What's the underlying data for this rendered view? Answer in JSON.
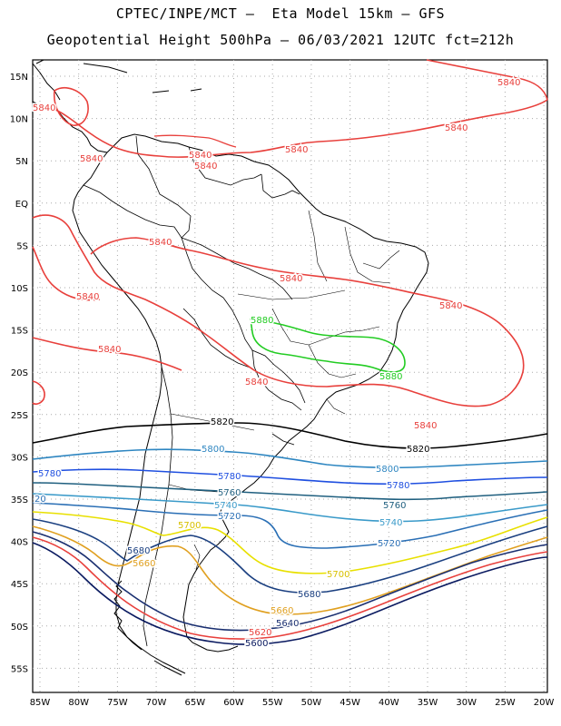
{
  "title_line1": "CPTEC/INPE/MCT –  Eta Model 15km – GFS",
  "title_line2": "Geopotential Height 500hPa – 06/03/2021 12UTC fct=212h",
  "lat_labels": [
    "15N",
    "10N",
    "5N",
    "EQ",
    "5S",
    "10S",
    "15S",
    "20S",
    "25S",
    "30S",
    "35S",
    "40S",
    "45S",
    "50S",
    "55S"
  ],
  "lon_labels": [
    "85W",
    "80W",
    "75W",
    "70W",
    "65W",
    "60W",
    "55W",
    "50W",
    "45W",
    "40W",
    "35W",
    "30W",
    "25W",
    "20W"
  ],
  "contours": [
    {
      "level": "5840",
      "color": "#e8403c",
      "region": "north"
    },
    {
      "level": "5880",
      "color": "#22cc22",
      "region": "central Brazil"
    },
    {
      "level": "5820",
      "color": "#000000",
      "region": "south"
    },
    {
      "level": "5800",
      "color": "#2e86c1",
      "region": "south"
    },
    {
      "level": "5780",
      "color": "#1f4fe0",
      "region": "south"
    },
    {
      "level": "5760",
      "color": "#1f5f7f",
      "region": "south"
    },
    {
      "level": "5740",
      "color": "#3a9ac9",
      "region": "south"
    },
    {
      "level": "5720",
      "color": "#2a6fb5",
      "region": "south"
    },
    {
      "level": "5700",
      "color": "#e8e000",
      "region": "south"
    },
    {
      "level": "5680",
      "color": "#1a3f80",
      "region": "south"
    },
    {
      "level": "5660",
      "color": "#e0a020",
      "region": "south"
    },
    {
      "level": "5640",
      "color": "#1a2f70",
      "region": "south"
    },
    {
      "level": "5620",
      "color": "#e8403c",
      "region": "south"
    },
    {
      "level": "5600",
      "color": "#0a1a60",
      "region": "south"
    }
  ],
  "contour_labels": {
    "c5840": [
      "5840",
      "5840",
      "5840",
      "5840",
      "5840",
      "5840",
      "5840",
      "5840",
      "5840",
      "5840",
      "5840",
      "5840",
      "5840",
      "5840"
    ],
    "c5880": [
      "5880",
      "5880"
    ],
    "c5820": [
      "5820",
      "5820"
    ],
    "c5800": [
      "5800",
      "5800"
    ],
    "c5780": [
      "5780",
      "5780",
      "5780"
    ],
    "c5760": [
      "5760",
      "5760"
    ],
    "c5740": [
      "5740",
      "5740"
    ],
    "c5720": [
      "5720",
      "5720",
      "20"
    ],
    "c5700": [
      "5700",
      "5700"
    ],
    "c5680": [
      "5680",
      "5680"
    ],
    "c5660": [
      "5660",
      "5660"
    ],
    "c5640": [
      "5640"
    ],
    "c5620": [
      "5620"
    ],
    "c5600": [
      "5600"
    ]
  }
}
